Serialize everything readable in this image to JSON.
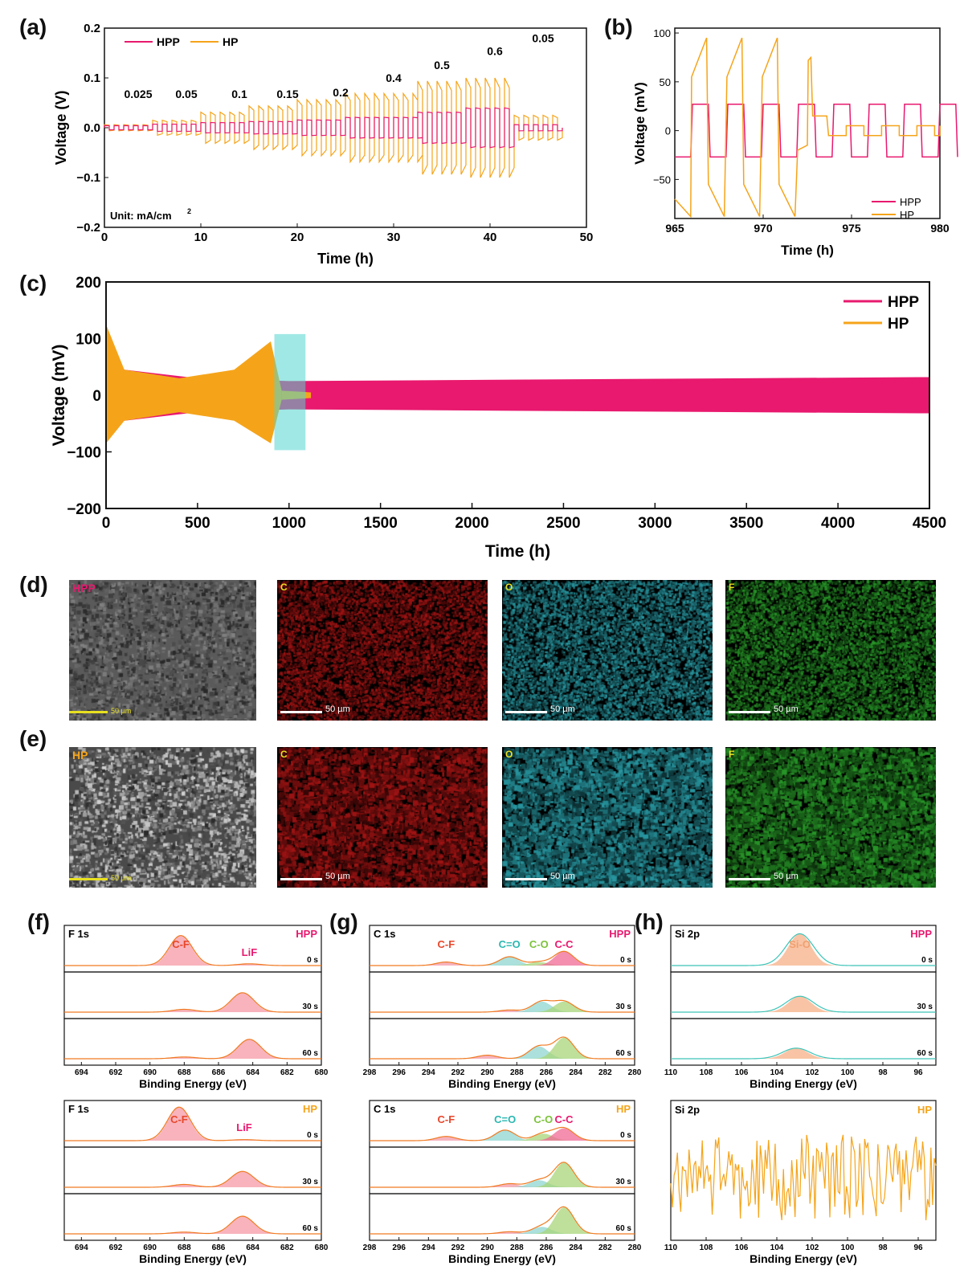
{
  "panels": {
    "a": "(a)",
    "b": "(b)",
    "c": "(c)",
    "d": "(d)",
    "e": "(e)",
    "f": "(f)",
    "g": "(g)",
    "h": "(h)"
  },
  "colors": {
    "hpp": "#e8196e",
    "hp": "#f5a41a",
    "box": "#52d6cf",
    "frame": "#111111"
  },
  "chart_data": [
    {
      "id": "a",
      "type": "line",
      "title": "",
      "xlabel": "Time (h)",
      "ylabel": "Voltage (V)",
      "xlim": [
        0,
        50
      ],
      "ylim": [
        -0.2,
        0.2
      ],
      "xticks": [
        "0",
        "10",
        "20",
        "30",
        "40",
        "50"
      ],
      "yticks": [
        "-0.2",
        "-0.1",
        "0.0",
        "0.1",
        "0.2"
      ],
      "legend": [
        "HPP",
        "HP"
      ],
      "unit_note": "Unit: mA/cm",
      "unit_sup": "2",
      "current_labels": [
        {
          "text": "0.025",
          "t": 3.5
        },
        {
          "text": "0.05",
          "t": 8.5
        },
        {
          "text": "0.1",
          "t": 14
        },
        {
          "text": "0.15",
          "t": 19
        },
        {
          "text": "0.2",
          "t": 24.5
        },
        {
          "text": "0.4",
          "t": 30
        },
        {
          "text": "0.5",
          "t": 35
        },
        {
          "text": "0.6",
          "t": 40.5
        },
        {
          "text": "0.05",
          "t": 45.5
        }
      ],
      "series": [
        {
          "name": "HPP",
          "segments": [
            {
              "t0": 0,
              "t1": 5,
              "amp": 0.004
            },
            {
              "t0": 5,
              "t1": 10,
              "amp": 0.007
            },
            {
              "t0": 10,
              "t1": 15,
              "amp": 0.01
            },
            {
              "t0": 15,
              "t1": 20,
              "amp": 0.012
            },
            {
              "t0": 20,
              "t1": 25,
              "amp": 0.015
            },
            {
              "t0": 25,
              "t1": 32.5,
              "amp": 0.02
            },
            {
              "t0": 32.5,
              "t1": 37.5,
              "amp": 0.03
            },
            {
              "t0": 37.5,
              "t1": 42.5,
              "amp": 0.038
            },
            {
              "t0": 42.5,
              "t1": 47.5,
              "amp": 0.006
            }
          ]
        },
        {
          "name": "HP",
          "segments": [
            {
              "t0": 0,
              "t1": 5,
              "amp": 0.005
            },
            {
              "t0": 5,
              "t1": 10,
              "amp": 0.012
            },
            {
              "t0": 10,
              "t1": 15,
              "amp": 0.025
            },
            {
              "t0": 15,
              "t1": 20,
              "amp": 0.035
            },
            {
              "t0": 20,
              "t1": 25,
              "amp": 0.045
            },
            {
              "t0": 25,
              "t1": 32.5,
              "amp": 0.055
            },
            {
              "t0": 32.5,
              "t1": 37.5,
              "amp": 0.075
            },
            {
              "t0": 37.5,
              "t1": 42.5,
              "amp": 0.08
            },
            {
              "t0": 42.5,
              "t1": 47.5,
              "amp": 0.02
            }
          ]
        }
      ]
    },
    {
      "id": "b",
      "type": "line",
      "xlabel": "Time (h)",
      "ylabel": "Voltage (mV)",
      "xlim": [
        965,
        980
      ],
      "ylim": [
        -90,
        105
      ],
      "xticks": [
        "965",
        "970",
        "975",
        "980"
      ],
      "yticks": [
        "-50",
        "0",
        "50",
        "100"
      ],
      "legend": [
        "HPP",
        "HP"
      ],
      "series": [
        {
          "name": "HPP",
          "amp_mV": 27,
          "period_h": 2.0
        },
        {
          "name": "HP",
          "amp_mV": 90,
          "fails_at_h": 972.5,
          "post_fail_mV": [
            15,
            -5
          ]
        }
      ]
    },
    {
      "id": "c",
      "type": "area",
      "xlabel": "Time (h)",
      "ylabel": "Voltage (mV)",
      "xlim": [
        0,
        4500
      ],
      "ylim": [
        -200,
        200
      ],
      "xticks": [
        "0",
        "500",
        "1000",
        "1500",
        "2000",
        "2500",
        "3000",
        "3500",
        "4000",
        "4500"
      ],
      "yticks": [
        "-200",
        "-100",
        "0",
        "100",
        "200"
      ],
      "legend": [
        "HPP",
        "HP"
      ],
      "series": [
        {
          "name": "HPP",
          "envelope": [
            [
              0,
              -60,
              60
            ],
            [
              100,
              -45,
              45
            ],
            [
              500,
              -30,
              30
            ],
            [
              1000,
              -25,
              25
            ],
            [
              4500,
              -32,
              32
            ]
          ]
        },
        {
          "name": "HP",
          "envelope": [
            [
              0,
              -85,
              125
            ],
            [
              100,
              -45,
              45
            ],
            [
              400,
              -30,
              30
            ],
            [
              700,
              -45,
              45
            ],
            [
              900,
              -85,
              95
            ],
            [
              960,
              -8,
              8
            ],
            [
              1120,
              -5,
              5
            ]
          ]
        }
      ],
      "highlight_h": [
        920,
        1090
      ]
    },
    {
      "id": "f",
      "type": "line",
      "title_left": "F 1s",
      "xlabel": "Binding Energy (eV)",
      "xticks": [
        "694",
        "692",
        "690",
        "688",
        "686",
        "684",
        "682",
        "680"
      ],
      "xlim": [
        695,
        680
      ],
      "depths": [
        "0 s",
        "30 s",
        "60 s"
      ],
      "HPP": {
        "tag": "HPP",
        "peak_labels": [
          "C-F",
          "LiF"
        ],
        "peaks": [
          [
            [
              688.2,
              0.85
            ],
            [
              684.2,
              0.05
            ]
          ],
          [
            [
              688,
              0.08
            ],
            [
              684.6,
              0.55
            ]
          ],
          [
            [
              688,
              0.05
            ],
            [
              684.2,
              0.55
            ]
          ]
        ]
      },
      "HP": {
        "tag": "HP",
        "peak_labels": [
          "C-F",
          "LiF"
        ],
        "peaks": [
          [
            [
              688.3,
              0.95
            ],
            [
              684.5,
              0.03
            ]
          ],
          [
            [
              688,
              0.08
            ],
            [
              684.6,
              0.45
            ]
          ],
          [
            [
              688,
              0.05
            ],
            [
              684.6,
              0.5
            ]
          ]
        ]
      }
    },
    {
      "id": "g",
      "type": "line",
      "title_left": "C 1s",
      "xlabel": "Binding Energy (eV)",
      "xticks": [
        "298",
        "296",
        "294",
        "292",
        "290",
        "288",
        "286",
        "284",
        "282",
        "280"
      ],
      "xlim": [
        298,
        280
      ],
      "depths": [
        "0 s",
        "30 s",
        "60 s"
      ],
      "HPP": {
        "tag": "HPP",
        "peak_labels": [
          "C-F",
          "C=O",
          "C-O",
          "C-C"
        ],
        "peaks": [
          [
            [
              292.8,
              0.1
            ],
            [
              288.5,
              0.25
            ],
            [
              286.5,
              0.1
            ],
            [
              284.8,
              0.4
            ]
          ],
          [
            [
              288.5,
              0.06
            ],
            [
              286.3,
              0.3
            ],
            [
              284.8,
              0.3
            ]
          ],
          [
            [
              290,
              0.1
            ],
            [
              286.5,
              0.35
            ],
            [
              284.8,
              0.6
            ]
          ]
        ]
      },
      "HP": {
        "tag": "HP",
        "peak_labels": [
          "C-F",
          "C=O",
          "C-O",
          "C-C"
        ],
        "peaks": [
          [
            [
              292.8,
              0.12
            ],
            [
              288.8,
              0.3
            ],
            [
              286.2,
              0.2
            ],
            [
              284.8,
              0.35
            ]
          ],
          [
            [
              288.5,
              0.1
            ],
            [
              286.5,
              0.2
            ],
            [
              284.8,
              0.7
            ]
          ],
          [
            [
              288.5,
              0.06
            ],
            [
              286.3,
              0.2
            ],
            [
              284.8,
              0.75
            ]
          ]
        ]
      }
    },
    {
      "id": "h",
      "type": "line",
      "title_left": "Si 2p",
      "xlabel": "Binding Energy (eV)",
      "xticks": [
        "110",
        "108",
        "106",
        "104",
        "102",
        "100",
        "98",
        "96"
      ],
      "xlim": [
        110,
        95
      ],
      "depths": [
        "0 s",
        "30 s",
        "60 s"
      ],
      "HPP": {
        "tag": "HPP",
        "peak_labels": [
          "Si-O"
        ],
        "peaks": [
          [
            [
              102.7,
              0.9
            ]
          ],
          [
            [
              102.7,
              0.45
            ]
          ],
          [
            [
              102.9,
              0.3
            ]
          ]
        ]
      },
      "HP": {
        "tag": "HP",
        "noise": true
      }
    }
  ],
  "edx": {
    "HPP": {
      "tag": "HPP",
      "maps": [
        "C",
        "O",
        "F"
      ]
    },
    "HP": {
      "tag": "HP",
      "maps": [
        "C",
        "O",
        "F"
      ]
    },
    "scale": "50 µm",
    "sem_scale": "50 µm"
  }
}
